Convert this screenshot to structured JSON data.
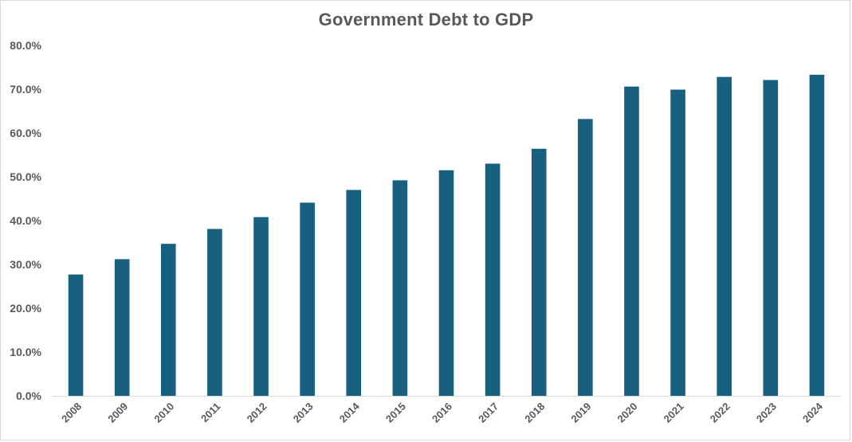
{
  "chart_data": {
    "type": "bar",
    "title": "Government Debt to GDP",
    "xlabel": "",
    "ylabel": "",
    "categories": [
      "2008",
      "2009",
      "2010",
      "2011",
      "2012",
      "2013",
      "2014",
      "2015",
      "2016",
      "2017",
      "2018",
      "2019",
      "2020",
      "2021",
      "2022",
      "2023",
      "2024"
    ],
    "values": [
      27.7,
      31.2,
      34.7,
      38.1,
      40.8,
      44.1,
      47.0,
      49.2,
      51.5,
      53.0,
      56.4,
      63.2,
      70.6,
      69.9,
      72.8,
      72.1,
      73.3
    ],
    "ylim": [
      0,
      80
    ],
    "yticks": [
      "0.0%",
      "10.0%",
      "20.0%",
      "30.0%",
      "40.0%",
      "50.0%",
      "60.0%",
      "70.0%",
      "80.0%"
    ],
    "grid": false,
    "legend": "none",
    "bar_color": "#17607f"
  }
}
